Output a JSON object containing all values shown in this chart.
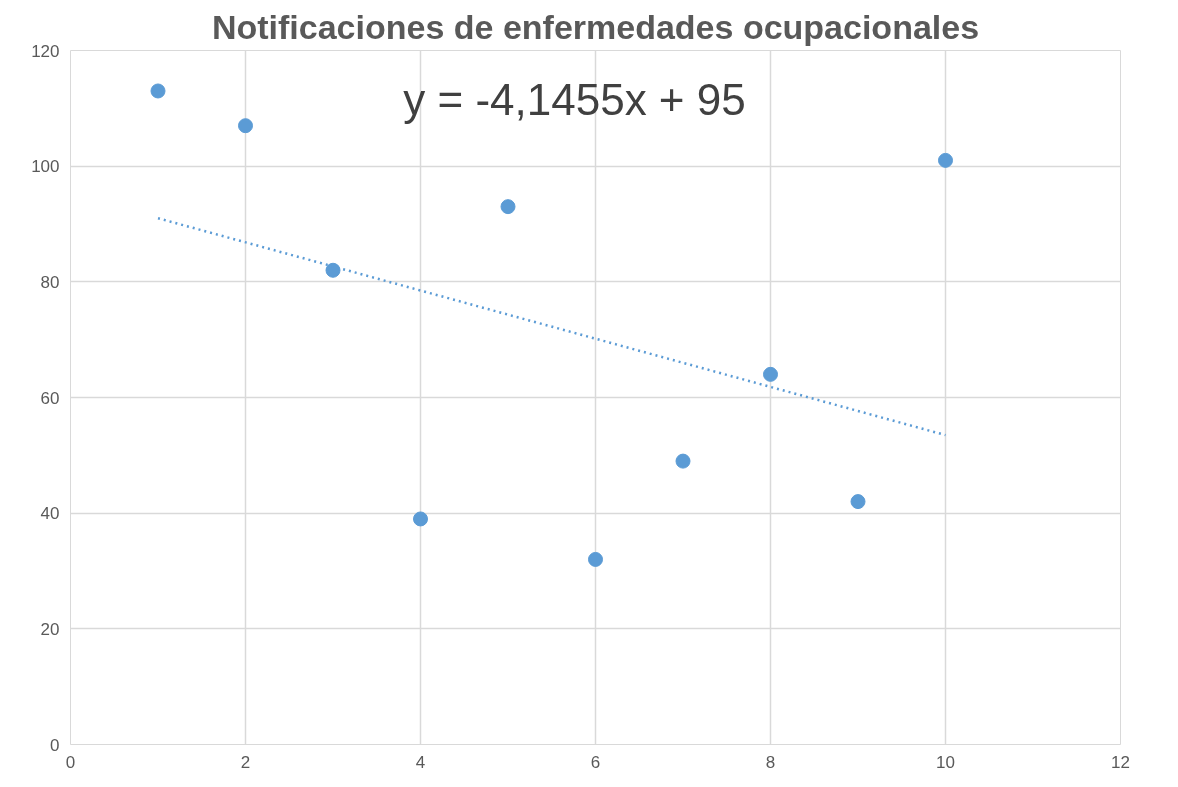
{
  "chart_data": {
    "type": "scatter",
    "title": "Notificaciones de enfermedades ocupacionales",
    "annotations": [
      "y = -4,1455x + 95"
    ],
    "x": [
      1,
      2,
      3,
      4,
      5,
      6,
      7,
      8,
      9,
      10
    ],
    "series": [
      {
        "color": "#5b9bd5",
        "marker": "circle",
        "values": [
          113,
          107,
          82,
          39,
          93,
          32,
          49,
          64,
          42,
          101
        ]
      },
      {
        "type": "line",
        "color": "#5b9bd5",
        "line_style": "dotted",
        "x": [
          1,
          10
        ],
        "values": [
          91,
          53.5
        ]
      }
    ],
    "xlim": [
      0,
      12
    ],
    "xticks": [
      0,
      2,
      4,
      6,
      8,
      10,
      12
    ],
    "ylim": [
      0,
      120
    ],
    "yticks": [
      0,
      20,
      40,
      60,
      80,
      100,
      120
    ],
    "grid": true
  }
}
